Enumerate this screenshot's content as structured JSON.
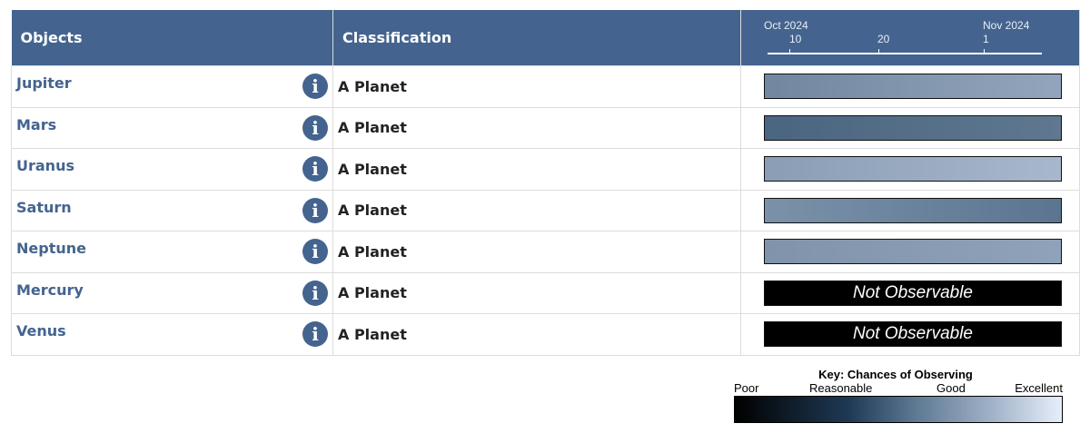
{
  "header": {
    "objects": "Objects",
    "classification": "Classification",
    "timeline": {
      "month1": "Oct 2024",
      "month2": "Nov 2024",
      "ticks": [
        "10",
        "20",
        "1"
      ]
    }
  },
  "rows": [
    {
      "name": "Jupiter",
      "classification": "A Planet",
      "observable": true,
      "gradient": [
        "#71879f",
        "#93a5bc"
      ]
    },
    {
      "name": "Mars",
      "classification": "A Planet",
      "observable": true,
      "gradient": [
        "#4a6580",
        "#5f7890"
      ]
    },
    {
      "name": "Uranus",
      "classification": "A Planet",
      "observable": true,
      "gradient": [
        "#8a9db5",
        "#a8b8cc"
      ]
    },
    {
      "name": "Saturn",
      "classification": "A Planet",
      "observable": true,
      "gradient": [
        "#7a91a9",
        "#5b7591"
      ]
    },
    {
      "name": "Neptune",
      "classification": "A Planet",
      "observable": true,
      "gradient": [
        "#8093aa",
        "#8fa2b9"
      ]
    },
    {
      "name": "Mercury",
      "classification": "A Planet",
      "observable": false,
      "status": "Not Observable"
    },
    {
      "name": "Venus",
      "classification": "A Planet",
      "observable": false,
      "status": "Not Observable"
    }
  ],
  "key": {
    "title": "Key: Chances of Observing",
    "labels": [
      "Poor",
      "Reasonable",
      "Good",
      "Excellent"
    ]
  },
  "colors": {
    "accent": "#44648f"
  }
}
